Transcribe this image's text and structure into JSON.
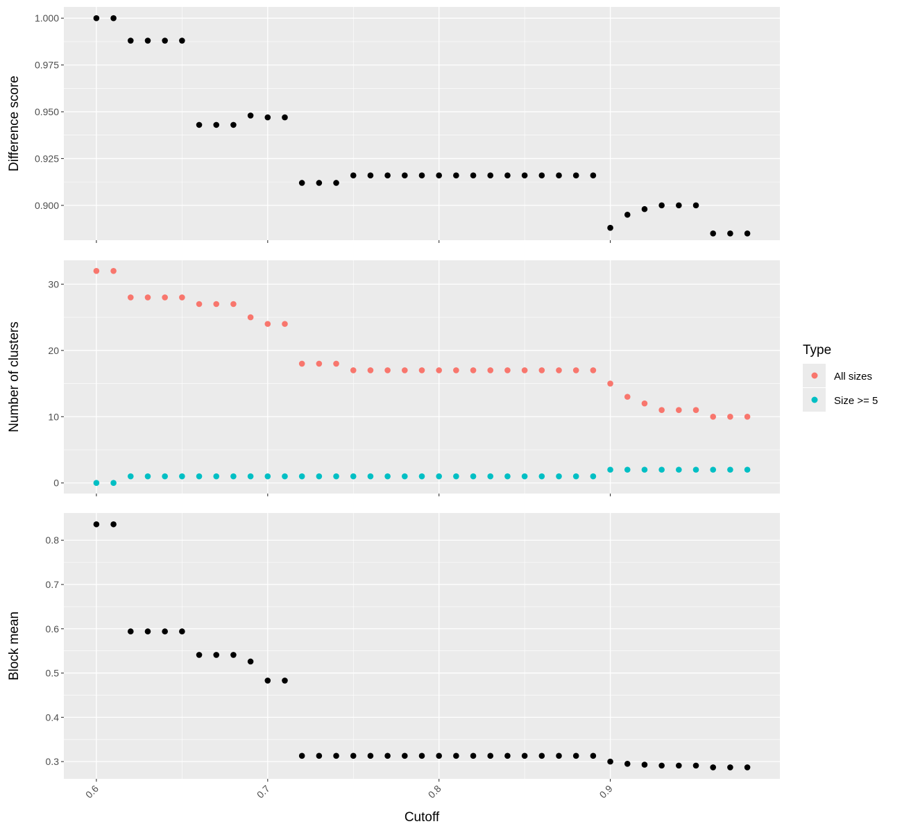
{
  "chart_data": {
    "type": "scatter",
    "xlabel": "Cutoff",
    "x_ticks": [
      "0.6",
      "0.7",
      "0.8",
      "0.9"
    ],
    "x": [
      0.6,
      0.61,
      0.62,
      0.63,
      0.64,
      0.65,
      0.66,
      0.67,
      0.68,
      0.69,
      0.7,
      0.71,
      0.72,
      0.73,
      0.74,
      0.75,
      0.76,
      0.77,
      0.78,
      0.79,
      0.8,
      0.81,
      0.82,
      0.83,
      0.84,
      0.85,
      0.86,
      0.87,
      0.88,
      0.89,
      0.9,
      0.91,
      0.92,
      0.93,
      0.94,
      0.95,
      0.96,
      0.97,
      0.98
    ],
    "xlim": [
      0.581,
      0.999
    ],
    "grid": true,
    "legend_position": "right",
    "legend": {
      "title": "Type",
      "entries": [
        {
          "label": "All sizes",
          "color": "#F8766D"
        },
        {
          "label": "Size >= 5",
          "color": "#00BFC4"
        }
      ]
    },
    "panels": [
      {
        "ylabel": "Difference score",
        "y_ticks": [
          "1.000",
          "0.975",
          "0.950",
          "0.925",
          "0.900"
        ],
        "ylim": [
          0.8814,
          1.006
        ],
        "series": [
          {
            "color": "#000000",
            "values": [
              1.0,
              1.0,
              0.988,
              0.988,
              0.988,
              0.988,
              0.943,
              0.943,
              0.943,
              0.948,
              0.947,
              0.947,
              0.912,
              0.912,
              0.912,
              0.916,
              0.916,
              0.916,
              0.916,
              0.916,
              0.916,
              0.916,
              0.916,
              0.916,
              0.916,
              0.916,
              0.916,
              0.916,
              0.916,
              0.916,
              0.888,
              0.895,
              0.898,
              0.9,
              0.9,
              0.9,
              0.885,
              0.885,
              0.885
            ]
          }
        ]
      },
      {
        "ylabel": "Number of clusters",
        "y_ticks": [
          "30",
          "20",
          "10",
          "0"
        ],
        "ylim": [
          -1.6,
          33.6
        ],
        "series": [
          {
            "name": "All sizes",
            "color": "#F8766D",
            "values": [
              32,
              32,
              28,
              28,
              28,
              28,
              27,
              27,
              27,
              25,
              24,
              24,
              18,
              18,
              18,
              17,
              17,
              17,
              17,
              17,
              17,
              17,
              17,
              17,
              17,
              17,
              17,
              17,
              17,
              17,
              15,
              13,
              12,
              11,
              11,
              11,
              10,
              10,
              10
            ]
          },
          {
            "name": "Size >= 5",
            "color": "#00BFC4",
            "values": [
              0,
              0,
              1,
              1,
              1,
              1,
              1,
              1,
              1,
              1,
              1,
              1,
              1,
              1,
              1,
              1,
              1,
              1,
              1,
              1,
              1,
              1,
              1,
              1,
              1,
              1,
              1,
              1,
              1,
              1,
              2,
              2,
              2,
              2,
              2,
              2,
              2,
              2,
              2
            ]
          }
        ]
      },
      {
        "ylabel": "Block mean",
        "y_ticks": [
          "0.8",
          "0.7",
          "0.6",
          "0.5",
          "0.4",
          "0.3"
        ],
        "ylim": [
          0.261,
          0.8615
        ],
        "series": [
          {
            "color": "#000000",
            "values": [
              0.836,
              0.836,
              0.594,
              0.594,
              0.594,
              0.594,
              0.541,
              0.541,
              0.541,
              0.526,
              0.483,
              0.483,
              0.313,
              0.313,
              0.313,
              0.313,
              0.313,
              0.313,
              0.313,
              0.313,
              0.313,
              0.313,
              0.313,
              0.313,
              0.313,
              0.313,
              0.313,
              0.313,
              0.313,
              0.313,
              0.3,
              0.295,
              0.293,
              0.291,
              0.291,
              0.291,
              0.287,
              0.287,
              0.287
            ]
          }
        ]
      }
    ]
  }
}
